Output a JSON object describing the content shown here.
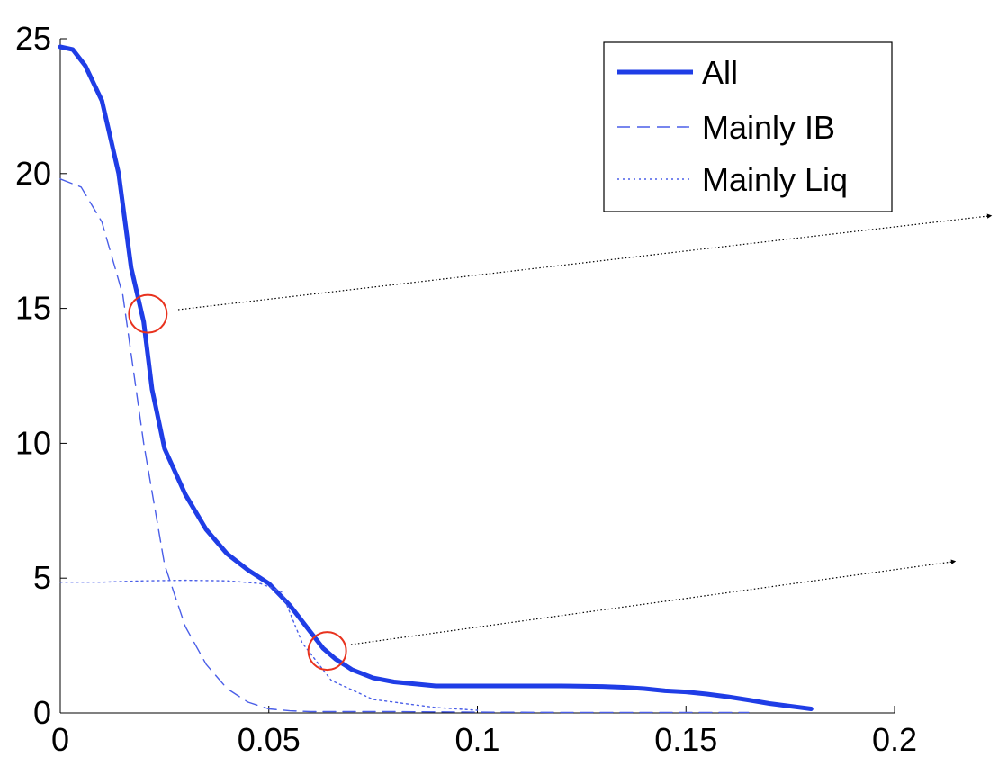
{
  "chart_data": {
    "type": "line",
    "title": "",
    "xlabel": "",
    "ylabel": "",
    "xlim": [
      0,
      0.2
    ],
    "ylim": [
      0,
      25
    ],
    "xticks": [
      0,
      0.05,
      0.1,
      0.15,
      0.2
    ],
    "xtick_labels": [
      "0",
      "0.05",
      "0.1",
      "0.15",
      "0.2"
    ],
    "yticks": [
      0,
      5,
      10,
      15,
      20,
      25
    ],
    "ytick_labels": [
      "0",
      "5",
      "10",
      "15",
      "20",
      "25"
    ],
    "grid": false,
    "legend_position": "top-right",
    "series": [
      {
        "name": "All",
        "color": "#1f3de6",
        "style": "solid",
        "x": [
          0,
          0.003,
          0.006,
          0.01,
          0.014,
          0.017,
          0.02,
          0.022,
          0.025,
          0.03,
          0.035,
          0.04,
          0.045,
          0.05,
          0.055,
          0.06,
          0.063,
          0.066,
          0.07,
          0.075,
          0.08,
          0.09,
          0.1,
          0.11,
          0.12,
          0.13,
          0.135,
          0.14,
          0.145,
          0.15,
          0.155,
          0.16,
          0.165,
          0.17,
          0.175,
          0.18
        ],
        "y": [
          24.7,
          24.6,
          24.0,
          22.7,
          20.0,
          16.5,
          14.5,
          12.0,
          9.8,
          8.1,
          6.8,
          5.9,
          5.3,
          4.8,
          4.0,
          3.0,
          2.4,
          2.0,
          1.6,
          1.3,
          1.15,
          1.0,
          1.0,
          1.0,
          1.0,
          0.98,
          0.95,
          0.9,
          0.82,
          0.78,
          0.7,
          0.6,
          0.48,
          0.35,
          0.25,
          0.15
        ]
      },
      {
        "name": "Mainly IB",
        "color": "#4a5ee8",
        "style": "dashed",
        "x": [
          0,
          0.005,
          0.01,
          0.015,
          0.02,
          0.025,
          0.03,
          0.035,
          0.04,
          0.045,
          0.05,
          0.055,
          0.06,
          0.08,
          0.1,
          0.12,
          0.15,
          0.165
        ],
        "y": [
          19.8,
          19.5,
          18.2,
          15.5,
          10.0,
          5.5,
          3.2,
          1.8,
          0.9,
          0.4,
          0.15,
          0.08,
          0.05,
          0.05,
          0.03,
          0.02,
          0.02,
          0.02
        ]
      },
      {
        "name": "Mainly Liq",
        "color": "#4a5ee8",
        "style": "dotted",
        "x": [
          0,
          0.01,
          0.02,
          0.03,
          0.04,
          0.048,
          0.053,
          0.058,
          0.065,
          0.075,
          0.09,
          0.1
        ],
        "y": [
          4.85,
          4.85,
          4.9,
          4.92,
          4.9,
          4.8,
          4.5,
          2.6,
          1.2,
          0.5,
          0.2,
          0.1
        ]
      }
    ],
    "highlights": [
      {
        "x": 0.021,
        "y": 14.8,
        "color": "#e8321e"
      },
      {
        "x": 0.064,
        "y": 2.3,
        "color": "#e8321e"
      }
    ]
  }
}
